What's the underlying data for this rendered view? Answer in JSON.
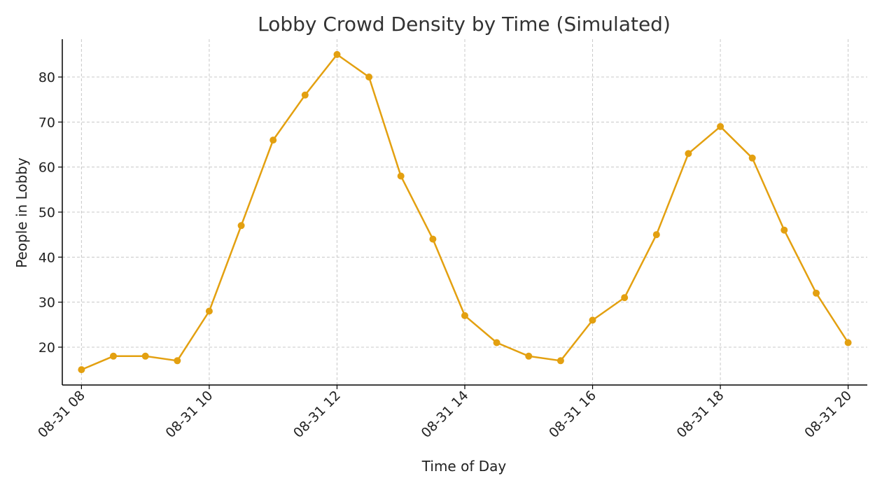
{
  "chart_data": {
    "type": "line",
    "title": "Lobby Crowd Density by Time (Simulated)",
    "xlabel": "Time of Day",
    "ylabel": "People in Lobby",
    "x_ticks": [
      "08-31 08",
      "08-31 10",
      "08-31 12",
      "08-31 14",
      "08-31 16",
      "08-31 18",
      "08-31 20"
    ],
    "y_ticks": [
      20,
      30,
      40,
      50,
      60,
      70,
      80
    ],
    "xlim": [
      "08-31 07:42",
      "08-31 20:18"
    ],
    "ylim": [
      11.6,
      88.4
    ],
    "grid": true,
    "series": [
      {
        "color": "#e3a010",
        "marker": "circle",
        "x": [
          "08-31 08:00",
          "08-31 08:30",
          "08-31 09:00",
          "08-31 09:30",
          "08-31 10:00",
          "08-31 10:30",
          "08-31 11:00",
          "08-31 11:30",
          "08-31 12:00",
          "08-31 12:30",
          "08-31 13:00",
          "08-31 13:30",
          "08-31 14:00",
          "08-31 14:30",
          "08-31 15:00",
          "08-31 15:30",
          "08-31 16:00",
          "08-31 16:30",
          "08-31 17:00",
          "08-31 17:30",
          "08-31 18:00",
          "08-31 18:30",
          "08-31 19:00",
          "08-31 19:30",
          "08-31 20:00"
        ],
        "values": [
          15,
          18,
          18,
          17,
          28,
          47,
          66,
          76,
          85,
          80,
          58,
          44,
          27,
          21,
          18,
          17,
          26,
          31,
          45,
          63,
          69,
          62,
          46,
          32,
          21
        ]
      }
    ]
  }
}
